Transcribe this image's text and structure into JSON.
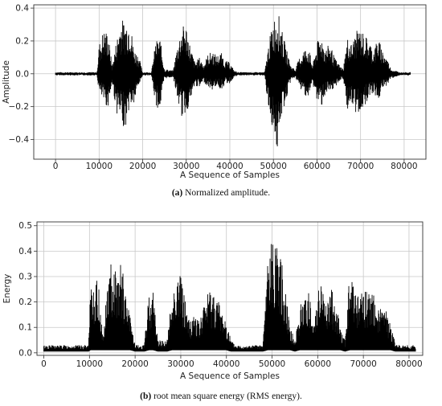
{
  "figures": [
    {
      "caption_tag": "(a)",
      "caption_text": " Normalized amplitude.",
      "chart_data": {
        "type": "line",
        "title": "",
        "xlabel": "A Sequence of Samples",
        "ylabel": "Amplitude",
        "xlim": [
          -5000,
          85000
        ],
        "ylim": [
          -0.52,
          0.42
        ],
        "xticks": [
          0,
          10000,
          20000,
          30000,
          40000,
          50000,
          60000,
          70000,
          80000
        ],
        "yticks": [
          -0.4,
          -0.2,
          0.0,
          0.2,
          0.4
        ],
        "ytick_labels": [
          "−0.4",
          "−0.2",
          "0.0",
          "0.2",
          "0.4"
        ],
        "grid": true,
        "series": [
          {
            "color": "#000000",
            "envelope": {
              "x": [
                0,
                9500,
                10000,
                11000,
                12000,
                13000,
                14000,
                15000,
                16000,
                17000,
                18000,
                19000,
                20000,
                22000,
                23000,
                24000,
                25000,
                27000,
                28000,
                29000,
                30000,
                31000,
                32000,
                33000,
                34000,
                35000,
                36000,
                37000,
                38000,
                39000,
                40000,
                41000,
                42000,
                48000,
                49000,
                50000,
                51000,
                52000,
                53000,
                54000,
                55000,
                56000,
                57000,
                58000,
                59000,
                60000,
                61000,
                62000,
                63000,
                64000,
                65000,
                66000,
                67000,
                68000,
                69000,
                70000,
                71000,
                72000,
                73000,
                74000,
                75000,
                76000,
                77000,
                78000,
                79000,
                80000,
                81500
              ],
              "max": [
                0.01,
                0.01,
                0.18,
                0.27,
                0.26,
                0.05,
                0.21,
                0.34,
                0.32,
                0.35,
                0.15,
                0.12,
                0.01,
                0.01,
                0.2,
                0.22,
                0.03,
                0.02,
                0.18,
                0.29,
                0.3,
                0.16,
                0.07,
                0.1,
                0.06,
                0.12,
                0.14,
                0.11,
                0.13,
                0.08,
                0.07,
                0.02,
                0.01,
                0.01,
                0.2,
                0.33,
                0.39,
                0.26,
                0.15,
                0.05,
                0.03,
                0.1,
                0.15,
                0.17,
                0.05,
                0.19,
                0.24,
                0.15,
                0.19,
                0.1,
                0.06,
                0.03,
                0.22,
                0.18,
                0.26,
                0.27,
                0.24,
                0.2,
                0.15,
                0.22,
                0.15,
                0.1,
                0.03,
                0.02,
                0.01,
                0.01,
                0.01
              ],
              "min": [
                -0.01,
                -0.01,
                -0.12,
                -0.17,
                -0.21,
                -0.06,
                -0.24,
                -0.29,
                -0.34,
                -0.2,
                -0.19,
                -0.08,
                -0.01,
                -0.01,
                -0.2,
                -0.22,
                -0.03,
                -0.02,
                -0.16,
                -0.27,
                -0.24,
                -0.17,
                -0.07,
                -0.09,
                -0.05,
                -0.08,
                -0.1,
                -0.07,
                -0.1,
                -0.06,
                -0.06,
                -0.02,
                -0.01,
                -0.01,
                -0.26,
                -0.34,
                -0.5,
                -0.24,
                -0.16,
                -0.04,
                -0.02,
                -0.09,
                -0.12,
                -0.15,
                -0.06,
                -0.17,
                -0.2,
                -0.12,
                -0.14,
                -0.09,
                -0.05,
                -0.03,
                -0.22,
                -0.2,
                -0.26,
                -0.22,
                -0.2,
                -0.13,
                -0.12,
                -0.17,
                -0.1,
                -0.07,
                -0.03,
                -0.02,
                -0.01,
                -0.01,
                -0.01
              ]
            }
          }
        ]
      }
    },
    {
      "caption_tag": "(b)",
      "caption_text": " root mean square energy (RMS energy).",
      "chart_data": {
        "type": "line",
        "title": "",
        "xlabel": "A Sequence of Samples",
        "ylabel": "Energy",
        "xlim": [
          -1500,
          83000
        ],
        "ylim": [
          -0.01,
          0.515
        ],
        "xticks": [
          0,
          10000,
          20000,
          30000,
          40000,
          50000,
          60000,
          70000,
          80000
        ],
        "yticks": [
          0.0,
          0.1,
          0.2,
          0.3,
          0.4,
          0.5
        ],
        "ytick_labels": [
          "0.0",
          "0.1",
          "0.2",
          "0.3",
          "0.4",
          "0.5"
        ],
        "grid": true,
        "series": [
          {
            "color": "#000000",
            "envelope": {
              "x": [
                0,
                9800,
                10200,
                11000,
                12000,
                13000,
                14000,
                15000,
                16000,
                17000,
                18000,
                19000,
                20000,
                22000,
                23000,
                24000,
                25000,
                27000,
                28000,
                29000,
                30000,
                31000,
                32000,
                33000,
                34000,
                35000,
                36000,
                37000,
                38000,
                39000,
                40000,
                41000,
                42000,
                48000,
                49000,
                50000,
                51000,
                52000,
                53000,
                54000,
                55000,
                56000,
                57000,
                58000,
                59000,
                60000,
                61000,
                62000,
                63000,
                64000,
                65000,
                66000,
                67000,
                68000,
                69000,
                70000,
                71000,
                72000,
                73000,
                74000,
                75000,
                76000,
                77000,
                78000,
                80000,
                81500
              ],
              "max": [
                0.03,
                0.03,
                0.24,
                0.29,
                0.28,
                0.06,
                0.3,
                0.38,
                0.34,
                0.36,
                0.22,
                0.14,
                0.03,
                0.03,
                0.24,
                0.25,
                0.05,
                0.05,
                0.22,
                0.33,
                0.31,
                0.21,
                0.12,
                0.17,
                0.12,
                0.19,
                0.25,
                0.26,
                0.22,
                0.17,
                0.13,
                0.05,
                0.03,
                0.03,
                0.38,
                0.44,
                0.5,
                0.37,
                0.26,
                0.1,
                0.05,
                0.18,
                0.22,
                0.27,
                0.09,
                0.29,
                0.27,
                0.2,
                0.25,
                0.2,
                0.1,
                0.05,
                0.32,
                0.27,
                0.23,
                0.24,
                0.25,
                0.24,
                0.2,
                0.17,
                0.17,
                0.11,
                0.04,
                0.03,
                0.03,
                0.03
              ],
              "min": [
                0.005,
                0.005,
                0.01,
                0.01,
                0.01,
                0.01,
                0.01,
                0.01,
                0.01,
                0.01,
                0.01,
                0.01,
                0.005,
                0.005,
                0.01,
                0.01,
                0.005,
                0.005,
                0.01,
                0.01,
                0.01,
                0.01,
                0.01,
                0.01,
                0.01,
                0.01,
                0.01,
                0.01,
                0.01,
                0.01,
                0.01,
                0.005,
                0.005,
                0.005,
                0.01,
                0.01,
                0.01,
                0.01,
                0.01,
                0.01,
                0.005,
                0.01,
                0.01,
                0.01,
                0.01,
                0.01,
                0.01,
                0.01,
                0.01,
                0.01,
                0.01,
                0.005,
                0.01,
                0.01,
                0.01,
                0.01,
                0.01,
                0.01,
                0.01,
                0.01,
                0.01,
                0.01,
                0.005,
                0.005,
                0.005,
                0.005
              ]
            }
          }
        ]
      }
    }
  ]
}
